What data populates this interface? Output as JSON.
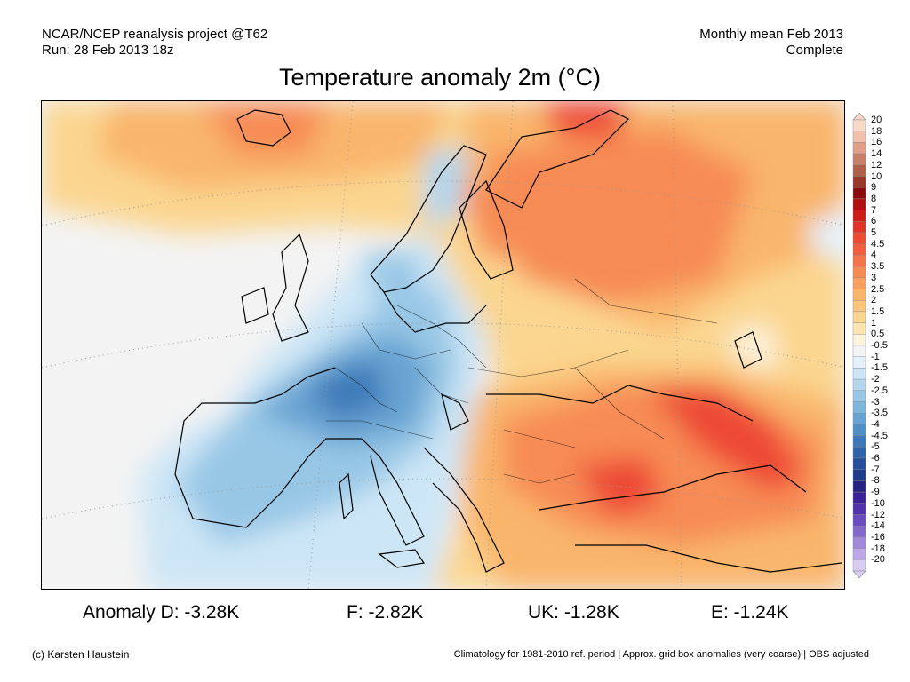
{
  "header": {
    "left_line1": "NCAR/NCEP reanalysis project @T62",
    "left_line2": "Run: 28 Feb 2013 18z",
    "right_line1": "Monthly mean Feb 2013",
    "right_line2": "Complete"
  },
  "title": "Temperature anomaly 2m (°C)",
  "map": {
    "region": "Europe",
    "variable": "2m temperature anomaly",
    "units": "°C"
  },
  "colorbar": {
    "levels": [
      {
        "label": "20",
        "color": "#f8d8c8"
      },
      {
        "label": "18",
        "color": "#f0c0a8"
      },
      {
        "label": "16",
        "color": "#e0a088"
      },
      {
        "label": "14",
        "color": "#c88068"
      },
      {
        "label": "12",
        "color": "#b06048"
      },
      {
        "label": "10",
        "color": "#983828"
      },
      {
        "label": "9",
        "color": "#8a0c0c"
      },
      {
        "label": "8",
        "color": "#b01010"
      },
      {
        "label": "7",
        "color": "#cc1f1a"
      },
      {
        "label": "6",
        "color": "#e03428"
      },
      {
        "label": "5",
        "color": "#ee4a34"
      },
      {
        "label": "4.5",
        "color": "#f25f3e"
      },
      {
        "label": "4",
        "color": "#f5754a"
      },
      {
        "label": "3.5",
        "color": "#f78b55"
      },
      {
        "label": "3",
        "color": "#f8a060"
      },
      {
        "label": "2.5",
        "color": "#f9b56c"
      },
      {
        "label": "2",
        "color": "#fac67c"
      },
      {
        "label": "1.5",
        "color": "#fbd690"
      },
      {
        "label": "1",
        "color": "#fde4b0"
      },
      {
        "label": "0.5",
        "color": "#fdf2dc"
      },
      {
        "label": "-0.5",
        "color": "#f3f3f3"
      },
      {
        "label": "-1",
        "color": "#e3f1fb"
      },
      {
        "label": "-1.5",
        "color": "#cde6f6"
      },
      {
        "label": "-2",
        "color": "#b2d7ef"
      },
      {
        "label": "-2.5",
        "color": "#98c7e6"
      },
      {
        "label": "-3",
        "color": "#7fb6dc"
      },
      {
        "label": "-3.5",
        "color": "#67a3d2"
      },
      {
        "label": "-4",
        "color": "#508fc6"
      },
      {
        "label": "-4.5",
        "color": "#3d79b8"
      },
      {
        "label": "-5",
        "color": "#3064aa"
      },
      {
        "label": "-6",
        "color": "#264e9a"
      },
      {
        "label": "-7",
        "color": "#213a8c"
      },
      {
        "label": "-8",
        "color": "#262480"
      },
      {
        "label": "-9",
        "color": "#3a2394"
      },
      {
        "label": "-10",
        "color": "#5233a8"
      },
      {
        "label": "-12",
        "color": "#6a4cbc"
      },
      {
        "label": "-14",
        "color": "#8468cc"
      },
      {
        "label": "-16",
        "color": "#a088da"
      },
      {
        "label": "-18",
        "color": "#bca8e6"
      },
      {
        "label": "-20",
        "color": "#d8ccf2"
      }
    ]
  },
  "stats": {
    "d": "Anomaly D: -3.28K",
    "f": "F: -2.82K",
    "uk": "UK: -1.28K",
    "e": "E: -1.24K"
  },
  "footer": {
    "left": "(c) Karsten Haustein",
    "right": "Climatology for 1981-2010 ref. period | Approx. grid box anomalies (very coarse) | OBS adjusted"
  }
}
